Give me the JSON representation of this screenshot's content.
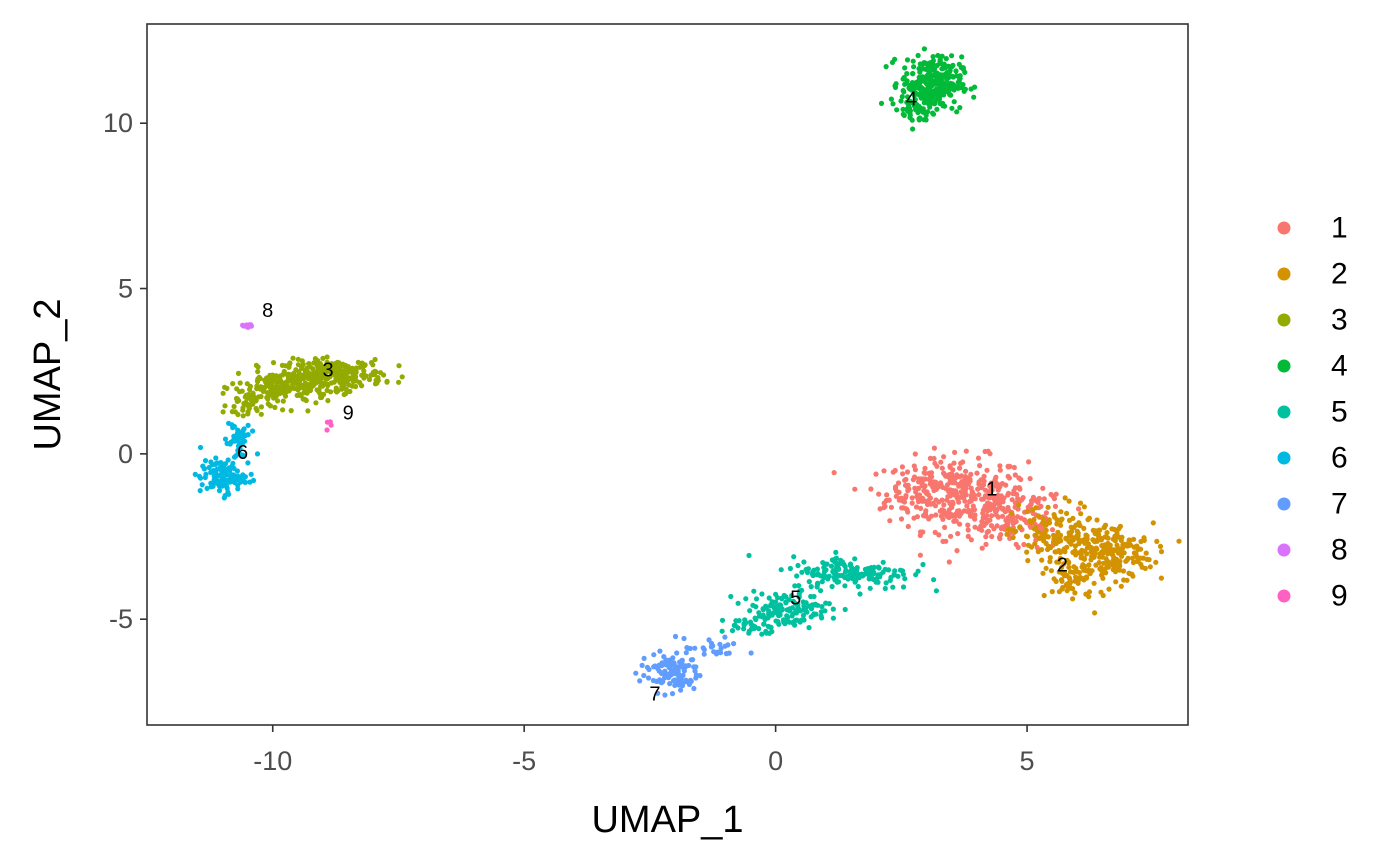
{
  "chart_data": {
    "type": "scatter",
    "title": "",
    "xlabel": "UMAP_1",
    "ylabel": "UMAP_2",
    "xlim": [
      -12.5,
      8.2
    ],
    "ylim": [
      -8.2,
      13.0
    ],
    "x_ticks": [
      -10,
      -5,
      0,
      5
    ],
    "y_ticks": [
      -5,
      0,
      5,
      10
    ],
    "grid": false,
    "legend_position": "right",
    "legend": [
      "1",
      "2",
      "3",
      "4",
      "5",
      "6",
      "7",
      "8",
      "9"
    ],
    "clusters": [
      {
        "name": "1",
        "color": "#F8766D",
        "label_pos": [
          4.3,
          -1.1
        ],
        "blobs": [
          {
            "cx": 3.6,
            "cy": -1.2,
            "sx": 0.7,
            "sy": 0.55,
            "n": 320
          },
          {
            "cx": 4.7,
            "cy": -2.0,
            "sx": 0.55,
            "sy": 0.5,
            "n": 150
          },
          {
            "cx": 2.9,
            "cy": -1.0,
            "sx": 0.45,
            "sy": 0.3,
            "n": 40
          }
        ]
      },
      {
        "name": "2",
        "color": "#D39200",
        "label_pos": [
          5.7,
          -3.4
        ],
        "blobs": [
          {
            "cx": 6.6,
            "cy": -3.0,
            "sx": 0.45,
            "sy": 0.45,
            "n": 230
          },
          {
            "cx": 5.5,
            "cy": -2.5,
            "sx": 0.4,
            "sy": 0.5,
            "n": 130
          },
          {
            "cx": 5.9,
            "cy": -3.9,
            "sx": 0.25,
            "sy": 0.3,
            "n": 50
          }
        ]
      },
      {
        "name": "3",
        "color": "#93AA00",
        "label_pos": [
          -8.9,
          2.5
        ],
        "blobs": [
          {
            "cx": -8.8,
            "cy": 2.4,
            "sx": 0.5,
            "sy": 0.22,
            "n": 250
          },
          {
            "cx": -9.8,
            "cy": 2.0,
            "sx": 0.45,
            "sy": 0.28,
            "n": 170
          },
          {
            "cx": -10.5,
            "cy": 1.5,
            "sx": 0.2,
            "sy": 0.25,
            "n": 40
          }
        ]
      },
      {
        "name": "4",
        "color": "#00BA38",
        "label_pos": [
          2.7,
          10.7
        ],
        "blobs": [
          {
            "cx": 3.1,
            "cy": 11.2,
            "sx": 0.3,
            "sy": 0.4,
            "n": 300
          },
          {
            "cx": 2.8,
            "cy": 10.3,
            "sx": 0.15,
            "sy": 0.2,
            "n": 30
          }
        ]
      },
      {
        "name": "5",
        "color": "#00C19F",
        "label_pos": [
          0.4,
          -4.4
        ],
        "blobs": [
          {
            "cx": 1.5,
            "cy": -3.6,
            "sx": 0.6,
            "sy": 0.25,
            "n": 170
          },
          {
            "cx": 0.2,
            "cy": -4.7,
            "sx": 0.45,
            "sy": 0.25,
            "n": 130
          },
          {
            "cx": -0.5,
            "cy": -5.2,
            "sx": 0.3,
            "sy": 0.15,
            "n": 30
          }
        ]
      },
      {
        "name": "6",
        "color": "#00B9E3",
        "label_pos": [
          -10.6,
          0.0
        ],
        "blobs": [
          {
            "cx": -11.0,
            "cy": -0.7,
            "sx": 0.22,
            "sy": 0.25,
            "n": 110
          },
          {
            "cx": -10.7,
            "cy": 0.4,
            "sx": 0.12,
            "sy": 0.4,
            "n": 50
          }
        ]
      },
      {
        "name": "7",
        "color": "#619CFF",
        "label_pos": [
          -2.4,
          -7.3
        ],
        "blobs": [
          {
            "cx": -2.1,
            "cy": -6.6,
            "sx": 0.3,
            "sy": 0.3,
            "n": 110
          },
          {
            "cx": -1.2,
            "cy": -5.9,
            "sx": 0.3,
            "sy": 0.15,
            "n": 25
          }
        ]
      },
      {
        "name": "8",
        "color": "#DB72FB",
        "label_pos": [
          -10.1,
          4.3
        ],
        "blobs": [
          {
            "cx": -10.5,
            "cy": 3.9,
            "sx": 0.06,
            "sy": 0.08,
            "n": 10
          }
        ]
      },
      {
        "name": "9",
        "color": "#FF61C3",
        "label_pos": [
          -8.5,
          1.2
        ],
        "blobs": [
          {
            "cx": -8.9,
            "cy": 0.9,
            "sx": 0.04,
            "sy": 0.08,
            "n": 4
          }
        ]
      }
    ]
  }
}
